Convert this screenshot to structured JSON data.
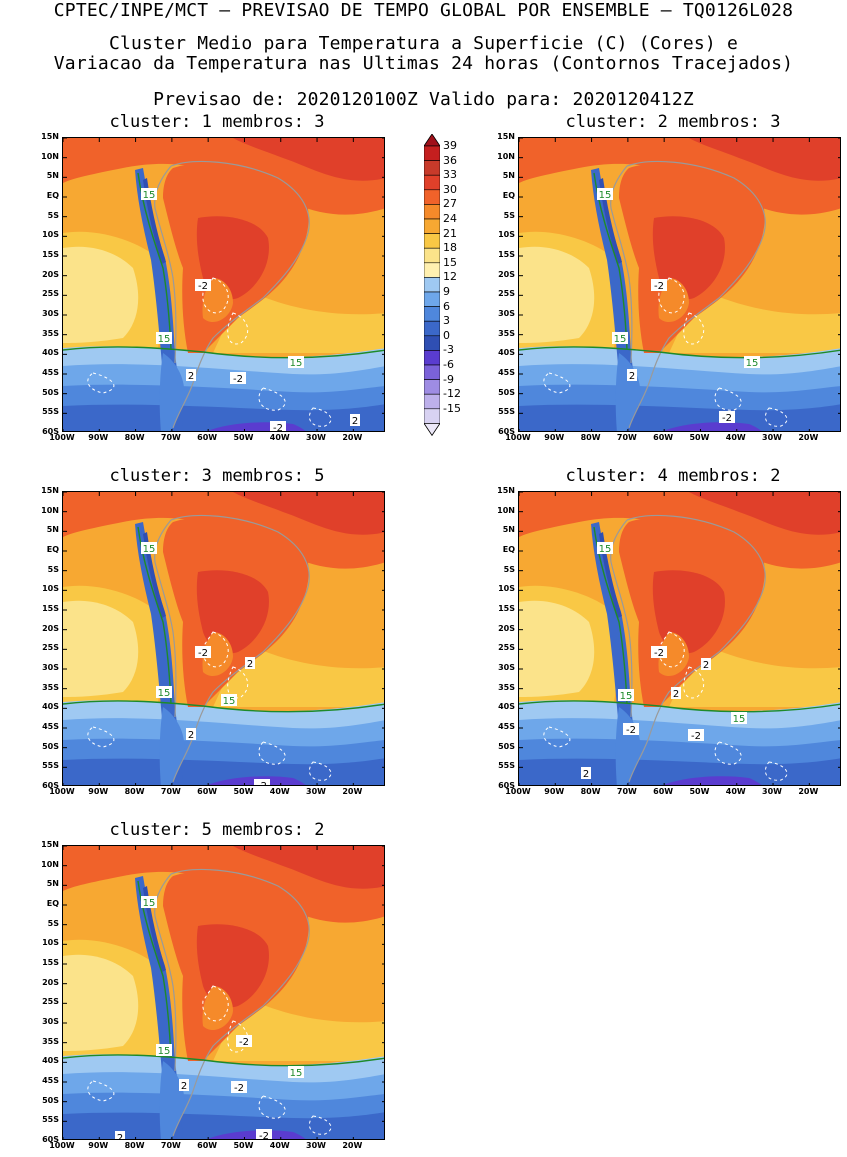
{
  "header": {
    "line1": "CPTEC/INPE/MCT – PREVISAO DE TEMPO GLOBAL POR ENSEMBLE – TQ0126L028",
    "line2": "Cluster Medio para Temperatura a Superficie (C) (Cores) e",
    "line3": "Variacao da Temperatura nas Ultimas 24 horas (Contornos Tracejados)",
    "line4": "Previsao de: 2020120100Z   Valido para: 2020120412Z"
  },
  "panels": [
    {
      "title": "cluster: 1  membros: 3",
      "labels": [
        "15",
        "15",
        "15",
        "-2",
        "2",
        "-2",
        "-2",
        "2"
      ]
    },
    {
      "title": "cluster: 2  membros: 3",
      "labels": [
        "15",
        "15",
        "15",
        "-2",
        "2",
        "-2"
      ]
    },
    {
      "title": "cluster: 3  membros: 5",
      "labels": [
        "15",
        "15",
        "15",
        "-2",
        "2",
        "2",
        "-2"
      ]
    },
    {
      "title": "cluster: 4  membros: 2",
      "labels": [
        "15",
        "15",
        "15",
        "-2",
        "2",
        "2",
        "-2",
        "-2",
        "2"
      ]
    },
    {
      "title": "cluster: 5  membros: 2",
      "labels": [
        "15",
        "15",
        "15",
        "-2",
        "2",
        "-2",
        "-2",
        "2"
      ]
    }
  ],
  "axes": {
    "lat_labels": [
      "15N",
      "10N",
      "5N",
      "EQ",
      "5S",
      "10S",
      "15S",
      "20S",
      "25S",
      "30S",
      "35S",
      "40S",
      "45S",
      "50S",
      "55S",
      "60S"
    ],
    "lon_labels": [
      "100W",
      "90W",
      "80W",
      "70W",
      "60W",
      "50W",
      "40W",
      "30W",
      "20W"
    ]
  },
  "colorbar": {
    "labels": [
      "39",
      "36",
      "33",
      "30",
      "27",
      "24",
      "21",
      "18",
      "15",
      "12",
      "9",
      "6",
      "3",
      "0",
      "-3",
      "-6",
      "-9",
      "-12",
      "-15"
    ],
    "colors": [
      "#c41f1f",
      "#c83a2a",
      "#e0402a",
      "#f0622a",
      "#f58a2a",
      "#f7a832",
      "#f9c845",
      "#fbe38a",
      "#fff0b0",
      "#9fc9f2",
      "#6ea7ea",
      "#4f87dc",
      "#3b68c9",
      "#2f4fb3",
      "#5a3ccf",
      "#7b62d9",
      "#9e8ce3",
      "#bdb0eb",
      "#d8d2f2"
    ],
    "top_color": "#a0101a",
    "bottom_color": "#ece8f8"
  }
}
